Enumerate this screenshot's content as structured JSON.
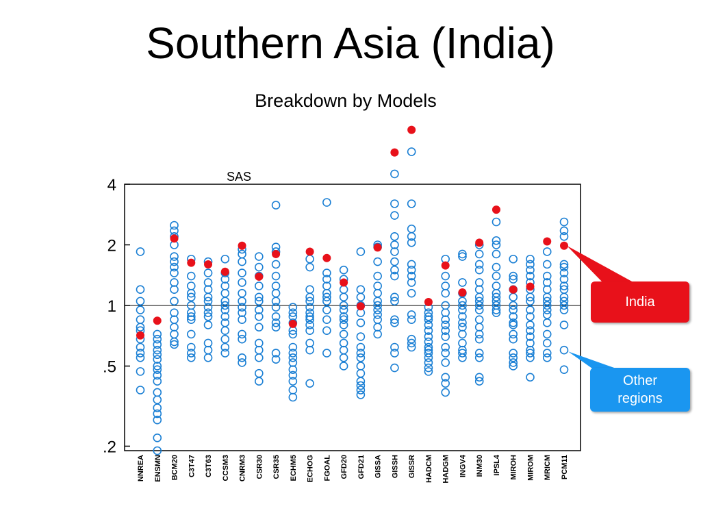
{
  "chart_data": {
    "type": "strip",
    "title": "Southern Asia (India)",
    "subtitle": "Breakdown by Models",
    "panel_title": "SAS",
    "log_scale": true,
    "reference_line": 1,
    "ylim": [
      0.19,
      4
    ],
    "yticks": [
      4,
      2,
      1,
      {
        "value": 0.5,
        "label": ".5"
      },
      {
        "value": 0.2,
        "label": ".2"
      }
    ],
    "categories": [
      "NNREA",
      "ENSMN",
      "BCM20",
      "C3T47",
      "C3T63",
      "CCSM3",
      "CNRM3",
      "CSR30",
      "CSR35",
      "ECHM5",
      "ECHOG",
      "FGOAL",
      "GFD20",
      "GFD21",
      "GISSA",
      "GISSH",
      "GISSR",
      "HADCM",
      "HADGM",
      "INGV4",
      "INM30",
      "IPSL4",
      "MIROH",
      "MIROM",
      "MRICM",
      "PCM11"
    ],
    "series": [
      {
        "name": "India",
        "color": "#e8111a",
        "values": [
          0.71,
          0.84,
          2.15,
          1.63,
          1.6,
          1.47,
          1.98,
          1.39,
          1.8,
          0.81,
          1.85,
          1.72,
          1.3,
          0.99,
          1.94,
          5.75,
          7.45,
          1.04,
          1.58,
          1.16,
          2.05,
          2.99,
          1.2,
          1.24,
          2.08,
          1.98
        ]
      },
      {
        "name": "Other regions",
        "color": "#1a7fd4",
        "values": [
          [
            1.85,
            1.2,
            1.05,
            0.95,
            0.85,
            0.78,
            0.75,
            0.68,
            0.62,
            0.58,
            0.55,
            0.47,
            0.38
          ],
          [
            0.72,
            0.68,
            0.64,
            0.6,
            0.57,
            0.54,
            0.5,
            0.48,
            0.45,
            0.42,
            0.37,
            0.34,
            0.31,
            0.29,
            0.27,
            0.22,
            0.19
          ],
          [
            2.5,
            2.35,
            2.2,
            2.0,
            1.75,
            1.65,
            1.55,
            1.45,
            1.3,
            1.2,
            1.05,
            0.92,
            0.85,
            0.78,
            0.72,
            0.66,
            0.64
          ],
          [
            1.7,
            1.4,
            1.25,
            1.15,
            1.1,
            1.0,
            0.92,
            0.88,
            0.85,
            0.72,
            0.62,
            0.58,
            0.55
          ],
          [
            1.65,
            1.45,
            1.3,
            1.2,
            1.1,
            1.05,
            0.98,
            0.92,
            0.88,
            0.8,
            0.65,
            0.6,
            0.55
          ],
          [
            1.7,
            1.45,
            1.35,
            1.25,
            1.15,
            1.05,
            1.0,
            0.95,
            0.88,
            0.82,
            0.75,
            0.68,
            0.62,
            0.58
          ],
          [
            1.9,
            1.8,
            1.65,
            1.45,
            1.3,
            1.15,
            1.05,
            0.98,
            0.92,
            0.85,
            0.72,
            0.68,
            0.55,
            0.52
          ],
          [
            1.75,
            1.55,
            1.4,
            1.25,
            1.1,
            1.05,
            0.95,
            0.88,
            0.78,
            0.65,
            0.6,
            0.55,
            0.46,
            0.42
          ],
          [
            3.15,
            1.95,
            1.85,
            1.6,
            1.4,
            1.25,
            1.15,
            1.05,
            0.98,
            0.88,
            0.82,
            0.78,
            0.58,
            0.54
          ],
          [
            0.98,
            0.92,
            0.88,
            0.82,
            0.75,
            0.72,
            0.62,
            0.58,
            0.55,
            0.52,
            0.48,
            0.45,
            0.42,
            0.38,
            0.35
          ],
          [
            1.7,
            1.55,
            1.2,
            1.1,
            1.05,
            0.98,
            0.92,
            0.88,
            0.85,
            0.8,
            0.75,
            0.65,
            0.6,
            0.41
          ],
          [
            3.25,
            1.45,
            1.35,
            1.25,
            1.15,
            1.1,
            1.05,
            0.95,
            0.85,
            0.75,
            0.58
          ],
          [
            1.5,
            1.35,
            1.2,
            1.1,
            1.0,
            0.95,
            0.88,
            0.85,
            0.8,
            0.72,
            0.65,
            0.6,
            0.55,
            0.5
          ],
          [
            1.85,
            1.2,
            1.1,
            1.0,
            0.92,
            0.82,
            0.7,
            0.62,
            0.58,
            0.55,
            0.5,
            0.46,
            0.42,
            0.4,
            0.38,
            0.36
          ],
          [
            2.0,
            1.95,
            1.65,
            1.4,
            1.25,
            1.15,
            1.05,
            1.0,
            0.95,
            0.9,
            0.85,
            0.78,
            0.72
          ],
          [
            4.5,
            3.2,
            2.8,
            2.2,
            2.0,
            1.85,
            1.65,
            1.5,
            1.4,
            1.1,
            1.05,
            0.85,
            0.82,
            0.62,
            0.58,
            0.49
          ],
          [
            5.8,
            3.2,
            2.4,
            2.2,
            2.05,
            1.6,
            1.5,
            1.4,
            1.3,
            1.15,
            0.9,
            0.85,
            0.68,
            0.65,
            0.62
          ],
          [
            0.98,
            0.92,
            0.88,
            0.85,
            0.8,
            0.75,
            0.7,
            0.66,
            0.62,
            0.6,
            0.58,
            0.55,
            0.52,
            0.49,
            0.47
          ],
          [
            1.7,
            1.4,
            1.25,
            1.15,
            1.0,
            0.92,
            0.85,
            0.8,
            0.75,
            0.7,
            0.62,
            0.58,
            0.52,
            0.44,
            0.41,
            0.37
          ],
          [
            1.8,
            1.75,
            1.3,
            1.15,
            1.05,
            1.0,
            0.95,
            0.88,
            0.82,
            0.78,
            0.72,
            0.65,
            0.6,
            0.58,
            0.55
          ],
          [
            2.0,
            1.8,
            1.6,
            1.5,
            1.3,
            1.2,
            1.1,
            1.05,
            1.0,
            0.95,
            0.85,
            0.78,
            0.72,
            0.68,
            0.58,
            0.55,
            0.44,
            0.42
          ],
          [
            2.6,
            2.1,
            2.0,
            1.8,
            1.55,
            1.4,
            1.25,
            1.15,
            1.1,
            1.05,
            1.0,
            0.95,
            0.92
          ],
          [
            1.7,
            1.4,
            1.35,
            1.2,
            1.1,
            1.0,
            0.95,
            0.88,
            0.82,
            0.8,
            0.72,
            0.68,
            0.58,
            0.55,
            0.52,
            0.5
          ],
          [
            1.7,
            1.6,
            1.5,
            1.4,
            1.3,
            1.2,
            1.1,
            1.05,
            0.95,
            0.88,
            0.8,
            0.75,
            0.7,
            0.65,
            0.6,
            0.58,
            0.55,
            0.44
          ],
          [
            1.85,
            1.6,
            1.4,
            1.3,
            1.2,
            1.1,
            1.05,
            1.0,
            0.95,
            0.9,
            0.82,
            0.72,
            0.65,
            0.58,
            0.55
          ],
          [
            2.6,
            2.35,
            2.2,
            1.6,
            1.55,
            1.45,
            1.35,
            1.25,
            1.2,
            1.1,
            1.05,
            1.0,
            0.95,
            0.8,
            0.6,
            0.48
          ]
        ]
      }
    ]
  }
}
